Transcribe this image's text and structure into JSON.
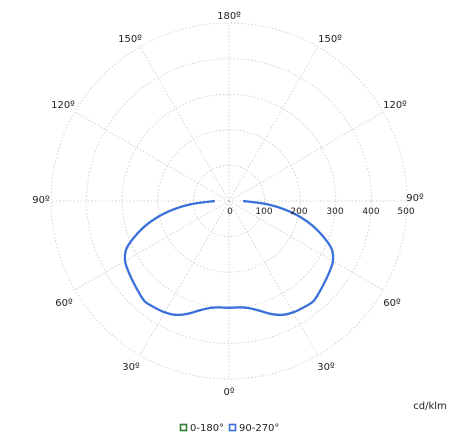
{
  "chart_data": {
    "type": "polar",
    "unit": "cd/klm",
    "radial_ticks": [
      "0",
      "100",
      "200",
      "300",
      "400",
      "500"
    ],
    "radial_max": 500,
    "angle_labels": {
      "left": [
        "90º",
        "120º",
        "150º",
        "180º"
      ],
      "right": [
        "90º",
        "120º",
        "150º",
        "180º"
      ],
      "bottom": "0º",
      "bottom_left": [
        "30º",
        "60º"
      ],
      "bottom_right": [
        "30º",
        "60º"
      ]
    },
    "series": [
      {
        "name": "0-180°",
        "color": "#2e7d32",
        "angles_deg": [
          0,
          5,
          10,
          15,
          20,
          25,
          30,
          35,
          40,
          45,
          50,
          55,
          60,
          65,
          70,
          75,
          80,
          85,
          90
        ],
        "values": [
          300,
          300,
          305,
          318,
          337,
          353,
          361,
          365,
          368,
          360,
          352,
          345,
          337,
          318,
          277,
          230,
          175,
          110,
          40
        ]
      },
      {
        "name": "90-270°",
        "color": "#3a6fe0",
        "angles_deg": [
          0,
          5,
          10,
          15,
          20,
          25,
          30,
          35,
          40,
          45,
          50,
          55,
          60,
          65,
          70,
          75,
          80,
          85,
          90
        ],
        "values": [
          300,
          300,
          305,
          318,
          337,
          353,
          361,
          365,
          368,
          360,
          352,
          345,
          337,
          318,
          277,
          230,
          175,
          110,
          40
        ]
      }
    ],
    "legend": "bottom-center",
    "grid": true
  }
}
